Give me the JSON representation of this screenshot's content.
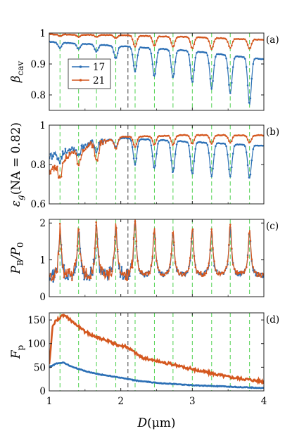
{
  "chart_data": {
    "type": "line",
    "x_axis": {
      "label": "D(μm)",
      "range": [
        1,
        4
      ],
      "ticks": [
        "1",
        "2",
        "3",
        "4"
      ]
    },
    "legend": {
      "placement": "upper-left of panel (a)",
      "entries": [
        {
          "name": "17",
          "color": "#2b6fb5"
        },
        {
          "name": "21",
          "color": "#d4571e"
        }
      ]
    },
    "reference_lines": {
      "green_dashed_x": [
        1.15,
        1.41,
        1.66,
        1.93,
        2.2,
        2.47,
        2.73,
        3.0,
        3.27,
        3.53,
        3.8
      ],
      "black_dashed_x": [
        2.1
      ]
    },
    "panels": [
      {
        "id": "a",
        "tag": "(a)",
        "ylabel": "β_cav",
        "ylim": [
          0.75,
          1.0
        ],
        "yticks": [
          "0.8",
          "0.9",
          "1"
        ],
        "series": [
          {
            "name": "17",
            "baseline": [
              [
                1.0,
                0.972
              ],
              [
                2.0,
                0.958
              ],
              [
                3.0,
                0.942
              ],
              [
                4.0,
                0.915
              ]
            ],
            "dips": [
              [
                1.15,
                0.952
              ],
              [
                1.41,
                0.948
              ],
              [
                1.66,
                0.94
              ],
              [
                1.93,
                0.918
              ],
              [
                2.2,
                0.875
              ],
              [
                2.47,
                0.86
              ],
              [
                2.73,
                0.855
              ],
              [
                3.0,
                0.84
              ],
              [
                3.27,
                0.82
              ],
              [
                3.53,
                0.805
              ],
              [
                3.8,
                0.77
              ]
            ]
          },
          {
            "name": "21",
            "baseline": [
              [
                1.0,
                0.996
              ],
              [
                2.0,
                0.993
              ],
              [
                3.0,
                0.987
              ],
              [
                4.0,
                0.978
              ]
            ],
            "dips": [
              [
                1.15,
                0.99
              ],
              [
                1.41,
                0.988
              ],
              [
                1.66,
                0.988
              ],
              [
                1.93,
                0.984
              ],
              [
                2.2,
                0.955
              ],
              [
                2.47,
                0.958
              ],
              [
                2.73,
                0.955
              ],
              [
                3.0,
                0.95
              ],
              [
                3.27,
                0.948
              ],
              [
                3.53,
                0.952
              ],
              [
                3.8,
                0.948
              ]
            ]
          }
        ]
      },
      {
        "id": "b",
        "tag": "(b)",
        "ylabel": "ε_g(NA = 0.82)",
        "ylim": [
          0.6,
          1.0
        ],
        "yticks": [
          "0.6",
          "0.8",
          "1"
        ],
        "series": [
          {
            "name": "17",
            "baseline": [
              [
                1.0,
                0.84
              ],
              [
                1.3,
                0.88
              ],
              [
                1.6,
                0.91
              ],
              [
                2.0,
                0.935
              ],
              [
                3.0,
                0.915
              ],
              [
                4.0,
                0.895
              ]
            ],
            "dips": [
              [
                1.15,
                0.82
              ],
              [
                1.41,
                0.85
              ],
              [
                1.66,
                0.86
              ],
              [
                1.93,
                0.89
              ],
              [
                2.2,
                0.8
              ],
              [
                2.47,
                0.78
              ],
              [
                2.73,
                0.76
              ],
              [
                3.0,
                0.75
              ],
              [
                3.27,
                0.74
              ],
              [
                3.53,
                0.74
              ],
              [
                3.8,
                0.73
              ]
            ]
          },
          {
            "name": "21",
            "baseline": [
              [
                1.0,
                0.76
              ],
              [
                1.3,
                0.86
              ],
              [
                1.6,
                0.9
              ],
              [
                2.0,
                0.94
              ],
              [
                3.0,
                0.95
              ],
              [
                4.0,
                0.948
              ]
            ],
            "dips": [
              [
                1.15,
                0.72
              ],
              [
                1.41,
                0.79
              ],
              [
                1.66,
                0.82
              ],
              [
                1.93,
                0.88
              ],
              [
                2.2,
                0.89
              ],
              [
                2.47,
                0.9
              ],
              [
                2.73,
                0.9
              ],
              [
                3.0,
                0.905
              ],
              [
                3.27,
                0.905
              ],
              [
                3.53,
                0.91
              ],
              [
                3.8,
                0.91
              ]
            ]
          }
        ]
      },
      {
        "id": "c",
        "tag": "(c)",
        "ylabel": "P_B/P_0",
        "ylim": [
          0,
          2.1
        ],
        "yticks": [
          "0",
          "1",
          "2"
        ],
        "series": [
          {
            "name": "17",
            "baseline": [
              [
                1.0,
                0.5
              ],
              [
                4.0,
                0.55
              ]
            ],
            "peaks": [
              [
                1.15,
                1.75
              ],
              [
                1.41,
                1.85
              ],
              [
                1.66,
                1.85
              ],
              [
                1.93,
                1.85
              ],
              [
                2.2,
                2.0
              ],
              [
                2.47,
                1.8
              ],
              [
                2.73,
                1.75
              ],
              [
                3.0,
                1.8
              ],
              [
                3.27,
                1.75
              ],
              [
                3.53,
                1.85
              ],
              [
                3.8,
                1.75
              ]
            ]
          },
          {
            "name": "21",
            "baseline": [
              [
                1.0,
                0.5
              ],
              [
                4.0,
                0.55
              ]
            ],
            "peaks": [
              [
                1.15,
                1.8
              ],
              [
                1.41,
                1.9
              ],
              [
                1.66,
                1.9
              ],
              [
                1.93,
                1.9
              ],
              [
                2.2,
                2.1
              ],
              [
                2.47,
                1.85
              ],
              [
                2.73,
                1.8
              ],
              [
                3.0,
                1.85
              ],
              [
                3.27,
                1.8
              ],
              [
                3.53,
                2.0
              ],
              [
                3.8,
                1.85
              ]
            ]
          }
        ]
      },
      {
        "id": "d",
        "tag": "(d)",
        "ylabel": "F_p",
        "ylim": [
          0,
          165
        ],
        "yticks": [
          "0",
          "50",
          "100",
          "150"
        ],
        "series": [
          {
            "name": "17",
            "points": [
              [
                1.0,
                50
              ],
              [
                1.1,
                58
              ],
              [
                1.2,
                60
              ],
              [
                1.3,
                52
              ],
              [
                1.5,
                42
              ],
              [
                1.7,
                35
              ],
              [
                2.0,
                28
              ],
              [
                2.2,
                22
              ],
              [
                2.5,
                17
              ],
              [
                3.0,
                12
              ],
              [
                3.5,
                9
              ],
              [
                4.0,
                6
              ]
            ]
          },
          {
            "name": "21",
            "points": [
              [
                1.0,
                55
              ],
              [
                1.05,
                140
              ],
              [
                1.1,
                150
              ],
              [
                1.2,
                160
              ],
              [
                1.3,
                150
              ],
              [
                1.5,
                125
              ],
              [
                1.7,
                112
              ],
              [
                1.9,
                100
              ],
              [
                2.1,
                92
              ],
              [
                2.3,
                70
              ],
              [
                2.6,
                60
              ],
              [
                3.0,
                46
              ],
              [
                3.5,
                30
              ],
              [
                4.0,
                20
              ]
            ]
          }
        ]
      }
    ]
  }
}
